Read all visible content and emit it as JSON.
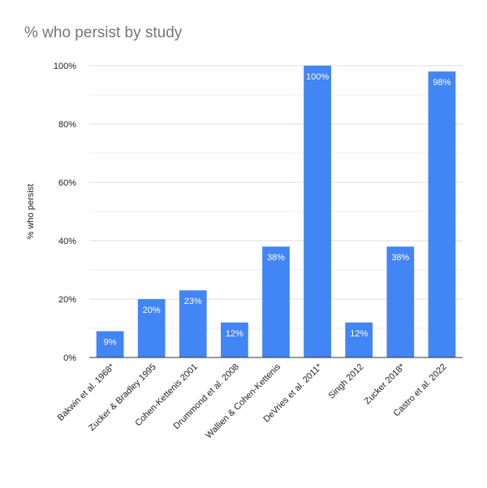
{
  "chart_data": {
    "type": "bar",
    "title": "% who persist by study",
    "xlabel": "",
    "ylabel": "% who persist",
    "categories": [
      "Bakwin et al. 1968*",
      "Zucker & Bradley 1995",
      "Cohen-Kettenis 2001",
      "Drummond et al. 2008",
      "Wallien & Cohen-Kettenis",
      "DeVries et al. 2011*",
      "Singh 2012",
      "Zucker 2018*",
      "Castro et al. 2022"
    ],
    "values": [
      9,
      20,
      23,
      12,
      38,
      100,
      12,
      38,
      98
    ],
    "value_labels": [
      "9%",
      "20%",
      "23%",
      "12%",
      "38%",
      "100%",
      "12%",
      "38%",
      "98%"
    ],
    "ylim": [
      0,
      100
    ],
    "yticks": [
      0,
      20,
      40,
      60,
      80,
      100
    ],
    "ytick_labels": [
      "0%",
      "20%",
      "40%",
      "60%",
      "80%",
      "100%"
    ],
    "grid": true,
    "legend": "none",
    "colors": {
      "bar": "#4285F4",
      "grid": "#DADCE0",
      "axis": "#333333",
      "title": "#757575"
    }
  }
}
